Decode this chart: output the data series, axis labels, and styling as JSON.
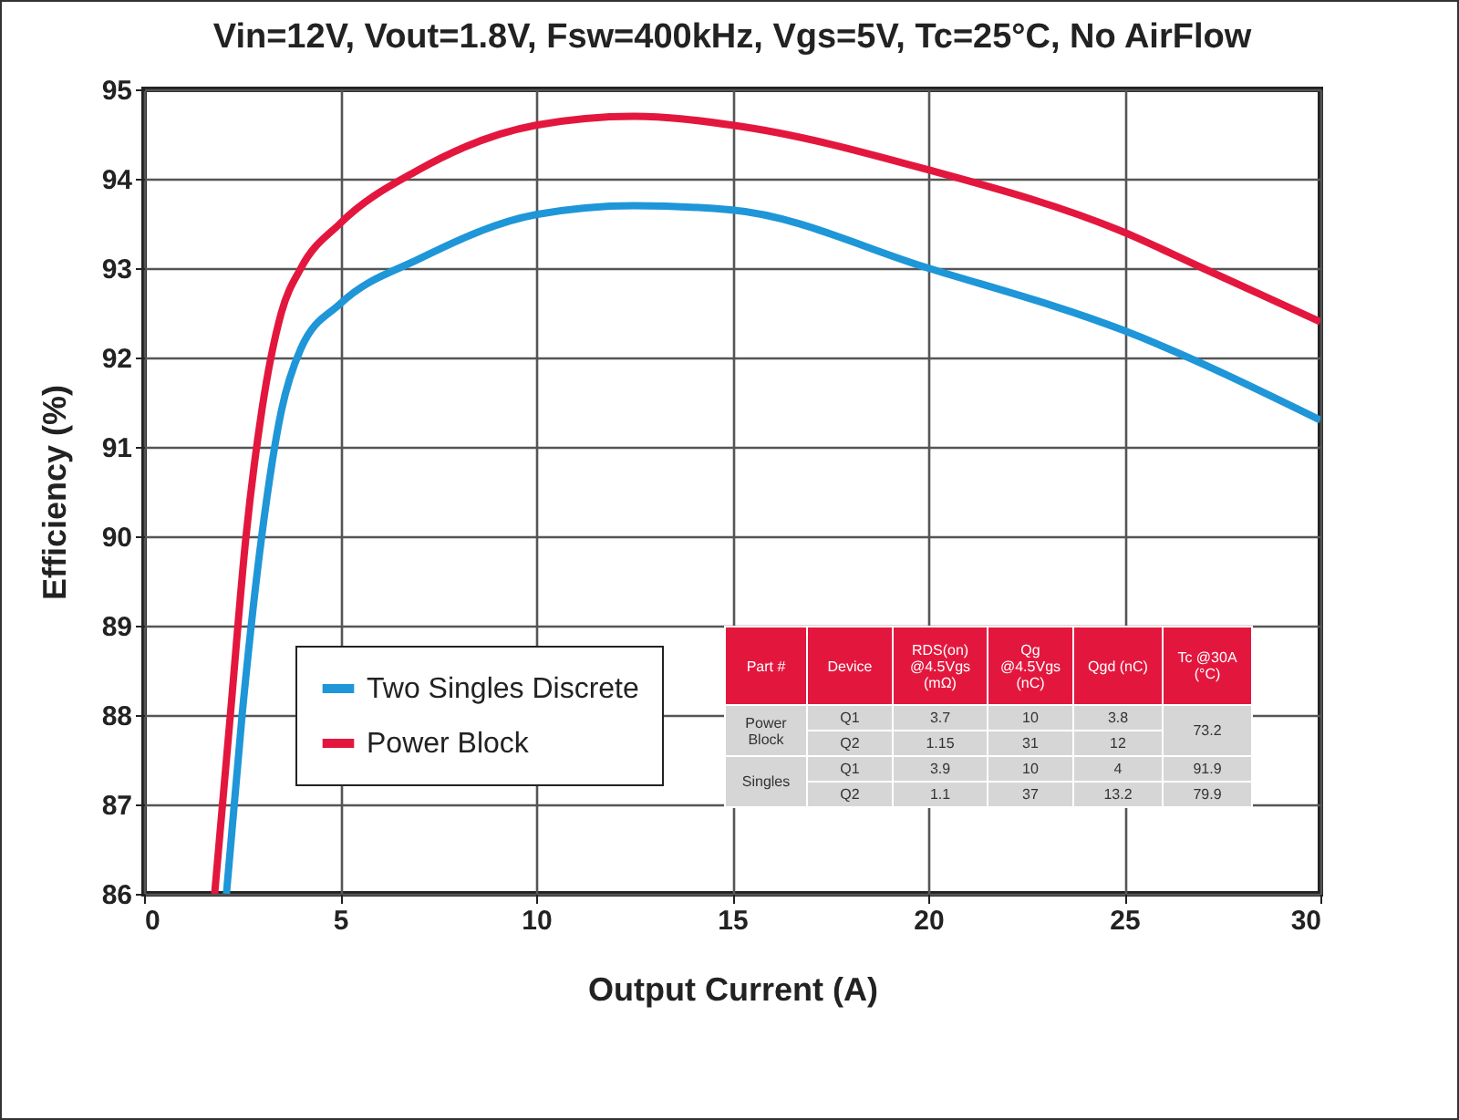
{
  "chart_data": {
    "type": "line",
    "title": "Vin=12V, Vout=1.8V, Fsw=400kHz, Vgs=5V, Tc=25°C, No AirFlow",
    "xlabel": "Output Current (A)",
    "ylabel": "Efficiency (%)",
    "xlim": [
      0,
      30
    ],
    "xticks": [
      0,
      5,
      10,
      15,
      20,
      25,
      30
    ],
    "ylim": [
      86,
      95
    ],
    "yticks": [
      86,
      87,
      88,
      89,
      90,
      91,
      92,
      93,
      94,
      95
    ],
    "grid": true,
    "legend": "bottom left",
    "series": [
      {
        "name": "Two Singles Discrete",
        "color": "#1e96d8",
        "x": [
          2.1,
          2.5,
          3,
          3.5,
          4,
          5,
          7,
          10,
          12.5,
          15,
          20,
          25,
          30
        ],
        "values": [
          86,
          88,
          90,
          91.4,
          92.1,
          92.6,
          93.1,
          93.6,
          93.7,
          93.65,
          93.0,
          92.3,
          91.3
        ]
      },
      {
        "name": "Power Block",
        "color": "#e3173e",
        "x": [
          1.8,
          2.2,
          2.6,
          3,
          3.5,
          4,
          5,
          7,
          10,
          12.5,
          15,
          20,
          25,
          27,
          30
        ],
        "values": [
          86,
          88,
          90,
          91.4,
          92.5,
          93,
          93.5,
          94.1,
          94.6,
          94.7,
          94.6,
          94.1,
          93.4,
          93.0,
          92.4
        ]
      }
    ],
    "annotations": [
      "Part #",
      "Device",
      "RDS(on) @4.5Vgs (mΩ)",
      "Qg @4.5Vgs (nC)",
      "Qgd (nC)",
      "Tc @30A (°C)",
      "Power Block",
      "Q1",
      "3.7",
      "10",
      "3.8",
      "73.2",
      "Q2",
      "1.15",
      "31",
      "12",
      "Singles",
      "Q1",
      "3.9",
      "10",
      "4",
      "91.9",
      "Q2",
      "1.1",
      "37",
      "13.2",
      "79.9"
    ]
  }
}
